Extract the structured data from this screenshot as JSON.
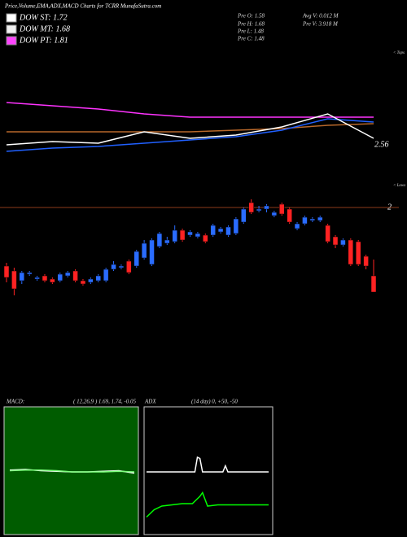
{
  "title": "Price,Volume,EMA,ADX,MACD Charts for TCRR MunafaSutra.com",
  "dow": [
    {
      "label": "DOW ST: 1.72",
      "color": "#ffffff"
    },
    {
      "label": "DOW MT: 1.68",
      "color": "#f0f0f0"
    },
    {
      "label": "DOW PT: 1.81",
      "color": "#ff44ff"
    }
  ],
  "stats": [
    "Pre O: 1.58",
    "Pre H: 1.68",
    "Pre L: 1.48",
    "Pre C: 1.48",
    "Avg V: 0.012 M",
    "Pre V: 3.918 M"
  ],
  "chart_data": [
    {
      "type": "line",
      "xlim": [
        0,
        48
      ],
      "ylim": [
        2.3,
        3.15
      ],
      "yticks": [
        2.56
      ],
      "annotations": [
        "< Tops",
        "< Lows"
      ],
      "x": [
        0,
        6,
        12,
        18,
        24,
        30,
        36,
        42,
        48
      ],
      "series": [
        {
          "color": "#ff33ff",
          "values": [
            2.82,
            2.8,
            2.78,
            2.75,
            2.73,
            2.73,
            2.73,
            2.73,
            2.73
          ]
        },
        {
          "color": "#b8682a",
          "values": [
            2.64,
            2.64,
            2.64,
            2.64,
            2.64,
            2.65,
            2.66,
            2.68,
            2.69
          ]
        },
        {
          "color": "#2060ff",
          "values": [
            2.52,
            2.54,
            2.55,
            2.57,
            2.59,
            2.61,
            2.65,
            2.72,
            2.7
          ]
        },
        {
          "color": "#ffffff",
          "values": [
            2.56,
            2.58,
            2.57,
            2.64,
            2.6,
            2.62,
            2.67,
            2.75,
            2.6
          ]
        }
      ]
    },
    {
      "type": "candlestick",
      "xlim": [
        0,
        48
      ],
      "ylim": [
        1.4,
        2.1
      ],
      "yticks": [
        2
      ],
      "up_color": "#2a6cff",
      "down_color": "#ff2222",
      "open": [
        1.64,
        1.61,
        1.55,
        1.59,
        1.56,
        1.58,
        1.56,
        1.55,
        1.58,
        1.61,
        1.55,
        1.54,
        1.55,
        1.55,
        1.62,
        1.63,
        1.67,
        1.64,
        1.69,
        1.65,
        1.76,
        1.78,
        1.79,
        1.86,
        1.83,
        1.82,
        1.83,
        1.83,
        1.85,
        1.83,
        1.84,
        1.91,
        2.03,
        1.98,
        1.99,
        1.95,
        2.02,
        1.99,
        1.87,
        1.9,
        1.92,
        1.92,
        1.89,
        1.82,
        1.77,
        1.8,
        1.79,
        1.7,
        1.58
      ],
      "high": [
        1.66,
        1.63,
        1.61,
        1.61,
        1.58,
        1.59,
        1.57,
        1.6,
        1.61,
        1.62,
        1.56,
        1.57,
        1.59,
        1.63,
        1.67,
        1.65,
        1.68,
        1.74,
        1.8,
        1.81,
        1.85,
        1.82,
        1.89,
        1.87,
        1.86,
        1.85,
        1.84,
        1.9,
        1.88,
        1.89,
        1.94,
        2.0,
        2.05,
        2.01,
        2.02,
        1.98,
        2.03,
        2.0,
        1.91,
        1.95,
        1.94,
        1.95,
        1.9,
        1.83,
        1.81,
        1.81,
        1.8,
        1.71,
        1.68
      ],
      "low": [
        1.54,
        1.46,
        1.53,
        1.58,
        1.55,
        1.54,
        1.53,
        1.54,
        1.57,
        1.54,
        1.52,
        1.53,
        1.54,
        1.54,
        1.61,
        1.62,
        1.59,
        1.63,
        1.68,
        1.64,
        1.75,
        1.77,
        1.78,
        1.79,
        1.82,
        1.81,
        1.78,
        1.82,
        1.84,
        1.82,
        1.83,
        1.9,
        1.96,
        1.97,
        1.97,
        1.94,
        1.95,
        1.9,
        1.86,
        1.89,
        1.91,
        1.91,
        1.78,
        1.75,
        1.76,
        1.64,
        1.64,
        1.62,
        1.48
      ],
      "close": [
        1.57,
        1.5,
        1.6,
        1.6,
        1.57,
        1.55,
        1.54,
        1.59,
        1.6,
        1.55,
        1.53,
        1.56,
        1.58,
        1.62,
        1.65,
        1.64,
        1.6,
        1.73,
        1.78,
        1.8,
        1.84,
        1.8,
        1.86,
        1.8,
        1.85,
        1.84,
        1.79,
        1.89,
        1.87,
        1.88,
        1.93,
        1.99,
        1.97,
        1.99,
        2.01,
        1.97,
        1.96,
        1.91,
        1.9,
        1.94,
        1.93,
        1.94,
        1.79,
        1.77,
        1.8,
        1.65,
        1.65,
        1.64,
        1.48
      ]
    },
    {
      "type": "line",
      "title": "MACD:",
      "subtitle": "( 12,26,9 ) 1.69, 1.74, -0.05",
      "xlim": [
        0,
        48
      ],
      "ylim": [
        -1,
        1
      ],
      "x": [
        0,
        6,
        12,
        18,
        24,
        30,
        36,
        42,
        48
      ],
      "series": [
        {
          "color": "#ffffff",
          "values": [
            0.03,
            0.04,
            0.02,
            0.01,
            0.0,
            0.0,
            0.01,
            0.02,
            -0.02
          ]
        },
        {
          "color": "#7cff7c",
          "values": [
            0.02,
            0.03,
            0.03,
            0.02,
            0.0,
            0.0,
            0.0,
            0.01,
            0.0
          ]
        }
      ]
    },
    {
      "type": "line",
      "title": "ADX",
      "subtitle": "(14 day) 0, +50, -50",
      "xlim": [
        0,
        48
      ],
      "ylim": [
        0,
        100
      ],
      "x": [
        0,
        3,
        6,
        10,
        14,
        18,
        19,
        20,
        21,
        22,
        24,
        28,
        30,
        31,
        32,
        34,
        48
      ],
      "series": [
        {
          "color": "#ffffff",
          "values": [
            50,
            50,
            50,
            50,
            50,
            50,
            50,
            62,
            61,
            50,
            50,
            50,
            50,
            55,
            50,
            50,
            50
          ]
        },
        {
          "color": "#00ff00",
          "values": [
            13,
            19,
            22,
            23,
            24,
            24,
            26,
            28,
            30,
            33,
            22,
            23,
            23,
            23,
            23,
            23,
            23
          ]
        }
      ]
    }
  ]
}
